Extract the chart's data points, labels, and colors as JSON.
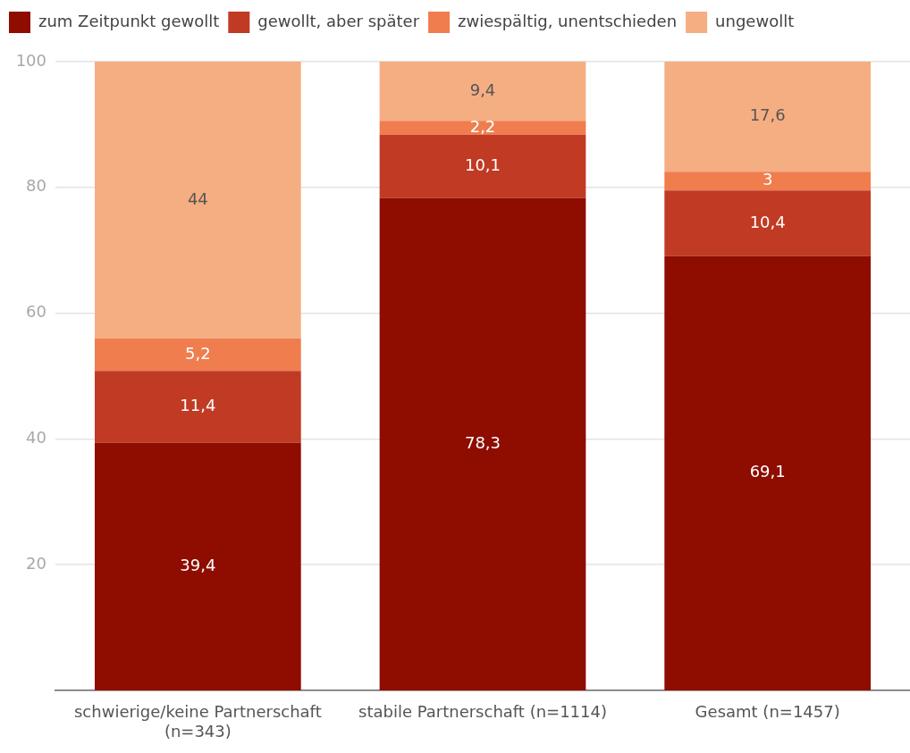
{
  "chart_data": {
    "type": "bar",
    "stacked": true,
    "categories": [
      "schwierige/keine Partnerschaft (n=343)",
      "stabile Partnerschaft (n=1114)",
      "Gesamt (n=1457)"
    ],
    "series": [
      {
        "name": "zum Zeitpunkt gewollt",
        "color": "#8e0c00",
        "values": [
          39.4,
          78.3,
          69.1
        ],
        "value_labels": [
          "39,4",
          "78,3",
          "69,1"
        ]
      },
      {
        "name": "gewollt, aber später",
        "color": "#c13a24",
        "values": [
          11.4,
          10.1,
          10.4
        ],
        "value_labels": [
          "11,4",
          "10,1",
          "10,4"
        ]
      },
      {
        "name": "zwiespältig, unentschieden",
        "color": "#ef7d4e",
        "values": [
          5.2,
          2.2,
          3
        ],
        "value_labels": [
          "5,2",
          "2,2",
          "3"
        ]
      },
      {
        "name": "ungewollt",
        "color": "#f5ae82",
        "values": [
          44,
          9.4,
          17.6
        ],
        "value_labels": [
          "44",
          "9,4",
          "17,6"
        ]
      }
    ],
    "ylim": [
      0,
      100
    ],
    "yticks": [
      20,
      40,
      60,
      80,
      100
    ],
    "grid": "y",
    "legend": "top left"
  }
}
